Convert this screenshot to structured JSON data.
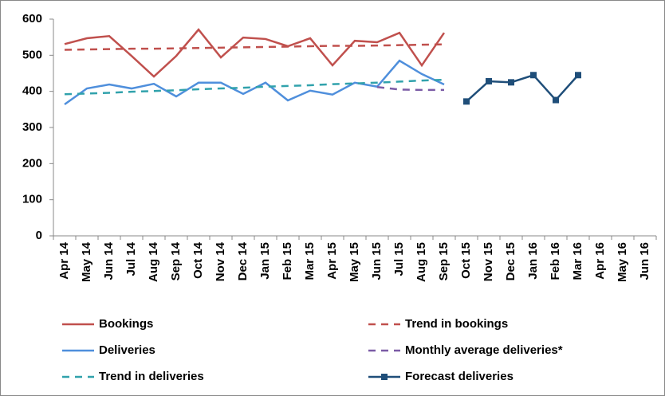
{
  "chart_data": {
    "type": "line",
    "categories": [
      "Apr 14",
      "May 14",
      "Jun 14",
      "Jul 14",
      "Aug 14",
      "Sep 14",
      "Oct 14",
      "Nov 14",
      "Dec 14",
      "Jan 15",
      "Feb 15",
      "Mar 15",
      "Apr 15",
      "May 15",
      "Jun 15",
      "Jul 15",
      "Aug 15",
      "Sep 15",
      "Oct 15",
      "Nov 15",
      "Dec 15",
      "Jan 16",
      "Feb 16",
      "Mar 16",
      "Apr 16",
      "May 16",
      "Jun 16"
    ],
    "series": [
      {
        "name": "Bookings",
        "color": "#c0504d",
        "dashed": false,
        "marker": null,
        "values": [
          531,
          547,
          553,
          498,
          441,
          498,
          571,
          494,
          549,
          545,
          525,
          547,
          472,
          540,
          536,
          562,
          472,
          562,
          null,
          null,
          null,
          null,
          null,
          null,
          null,
          null,
          null
        ]
      },
      {
        "name": "Trend in bookings",
        "color": "#c0504d",
        "dashed": true,
        "marker": null,
        "values": [
          515,
          516,
          517,
          518,
          518,
          519,
          520,
          521,
          522,
          523,
          524,
          525,
          526,
          526,
          527,
          528,
          529,
          530,
          null,
          null,
          null,
          null,
          null,
          null,
          null,
          null,
          null
        ]
      },
      {
        "name": "Deliveries",
        "color": "#4f8fdc",
        "dashed": false,
        "marker": null,
        "values": [
          364,
          408,
          419,
          408,
          421,
          386,
          424,
          424,
          393,
          424,
          375,
          402,
          391,
          424,
          413,
          485,
          448,
          419,
          null,
          null,
          null,
          null,
          null,
          null,
          null,
          null,
          null
        ]
      },
      {
        "name": "Monthly average deliveries*",
        "color": "#7b5ca6",
        "dashed": true,
        "marker": null,
        "values": [
          null,
          null,
          null,
          null,
          null,
          null,
          null,
          null,
          null,
          null,
          null,
          null,
          null,
          null,
          412,
          405,
          404,
          404,
          null,
          null,
          null,
          null,
          null,
          null,
          null,
          null,
          null
        ]
      },
      {
        "name": "Trend in deliveries",
        "color": "#31a2ac",
        "dashed": true,
        "marker": null,
        "values": [
          392,
          394,
          396,
          399,
          401,
          403,
          406,
          408,
          410,
          413,
          415,
          417,
          420,
          422,
          424,
          427,
          430,
          432,
          null,
          null,
          null,
          null,
          null,
          null,
          null,
          null,
          null
        ]
      },
      {
        "name": "Forecast deliveries",
        "color": "#1f4e79",
        "dashed": false,
        "marker": "square",
        "values": [
          null,
          null,
          null,
          null,
          null,
          null,
          null,
          null,
          null,
          null,
          null,
          null,
          null,
          null,
          null,
          null,
          null,
          null,
          372,
          428,
          425,
          445,
          376,
          445,
          null,
          null,
          null
        ]
      }
    ],
    "ylim": [
      0,
      600
    ],
    "yticks": [
      0,
      100,
      200,
      300,
      400,
      500,
      600
    ],
    "grid": false
  }
}
